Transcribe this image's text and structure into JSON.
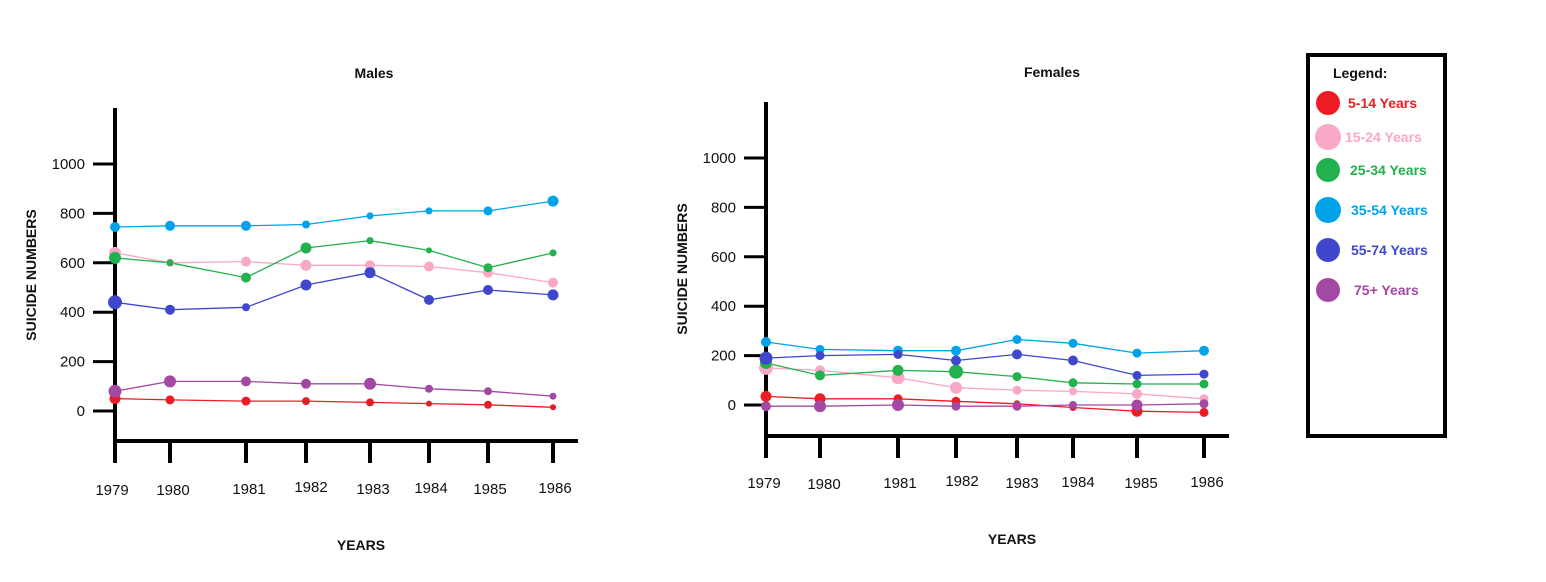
{
  "chart_data": [
    {
      "type": "line",
      "title": "Males",
      "xlabel": "YEARS",
      "ylabel": "SUICIDE NUMBERS",
      "ylim": [
        0,
        1000
      ],
      "x_ticks": [
        "1979",
        "1980",
        "1981",
        "1982",
        "1983",
        "1984",
        "1985",
        "1986"
      ],
      "y_ticks": [
        "0",
        "200",
        "400",
        "600",
        "800",
        "1000"
      ],
      "series": [
        {
          "name": "5-14 Years",
          "color": "#ed1c24",
          "values": [
            50,
            45,
            40,
            40,
            35,
            30,
            25,
            15
          ]
        },
        {
          "name": "15-24 Years",
          "color": "#f9a8c8",
          "values": [
            640,
            600,
            605,
            590,
            590,
            585,
            560,
            520
          ]
        },
        {
          "name": "25-34 Years",
          "color": "#22b14c",
          "values": [
            620,
            600,
            540,
            660,
            690,
            650,
            580,
            640
          ]
        },
        {
          "name": "35-54 Years",
          "color": "#00a2e8",
          "values": [
            745,
            750,
            750,
            755,
            790,
            810,
            810,
            850
          ]
        },
        {
          "name": "55-74 Years",
          "color": "#3f48cc",
          "values": [
            440,
            410,
            420,
            510,
            560,
            450,
            490,
            470
          ]
        },
        {
          "name": "75+ Years",
          "color": "#a349a4",
          "values": [
            80,
            120,
            120,
            110,
            110,
            90,
            80,
            60
          ]
        }
      ]
    },
    {
      "type": "line",
      "title": "Females",
      "xlabel": "YEARS",
      "ylabel": "SUICIDE NUMBERS",
      "ylim": [
        0,
        1000
      ],
      "x_ticks": [
        "1979",
        "1980",
        "1981",
        "1982",
        "1983",
        "1984",
        "1985",
        "1986"
      ],
      "y_ticks": [
        "0",
        "200",
        "400",
        "600",
        "800",
        "1000"
      ],
      "series": [
        {
          "name": "5-14 Years",
          "color": "#ed1c24",
          "values": [
            35,
            25,
            25,
            15,
            5,
            -10,
            -25,
            -30
          ]
        },
        {
          "name": "15-24 Years",
          "color": "#f9a8c8",
          "values": [
            150,
            140,
            110,
            70,
            60,
            55,
            45,
            25
          ]
        },
        {
          "name": "25-34 Years",
          "color": "#22b14c",
          "values": [
            170,
            120,
            140,
            135,
            115,
            90,
            85,
            85
          ]
        },
        {
          "name": "35-54 Years",
          "color": "#00a2e8",
          "values": [
            255,
            225,
            220,
            220,
            265,
            250,
            210,
            220
          ]
        },
        {
          "name": "55-74 Years",
          "color": "#3f48cc",
          "values": [
            190,
            200,
            205,
            180,
            205,
            180,
            120,
            125
          ]
        },
        {
          "name": "75+ Years",
          "color": "#a349a4",
          "values": [
            -5,
            -5,
            0,
            -5,
            -5,
            0,
            0,
            5
          ]
        }
      ]
    }
  ],
  "legend": {
    "title": "Legend:",
    "items": [
      {
        "label": "5-14 Years",
        "color": "#ed1c24"
      },
      {
        "label": "15-24 Years",
        "color": "#f9a8c8"
      },
      {
        "label": "25-34 Years",
        "color": "#22b14c"
      },
      {
        "label": "35-54 Years",
        "color": "#00a2e8"
      },
      {
        "label": "55-74 Years",
        "color": "#3f48cc"
      },
      {
        "label": "75+ Years",
        "color": "#a349a4"
      }
    ]
  }
}
